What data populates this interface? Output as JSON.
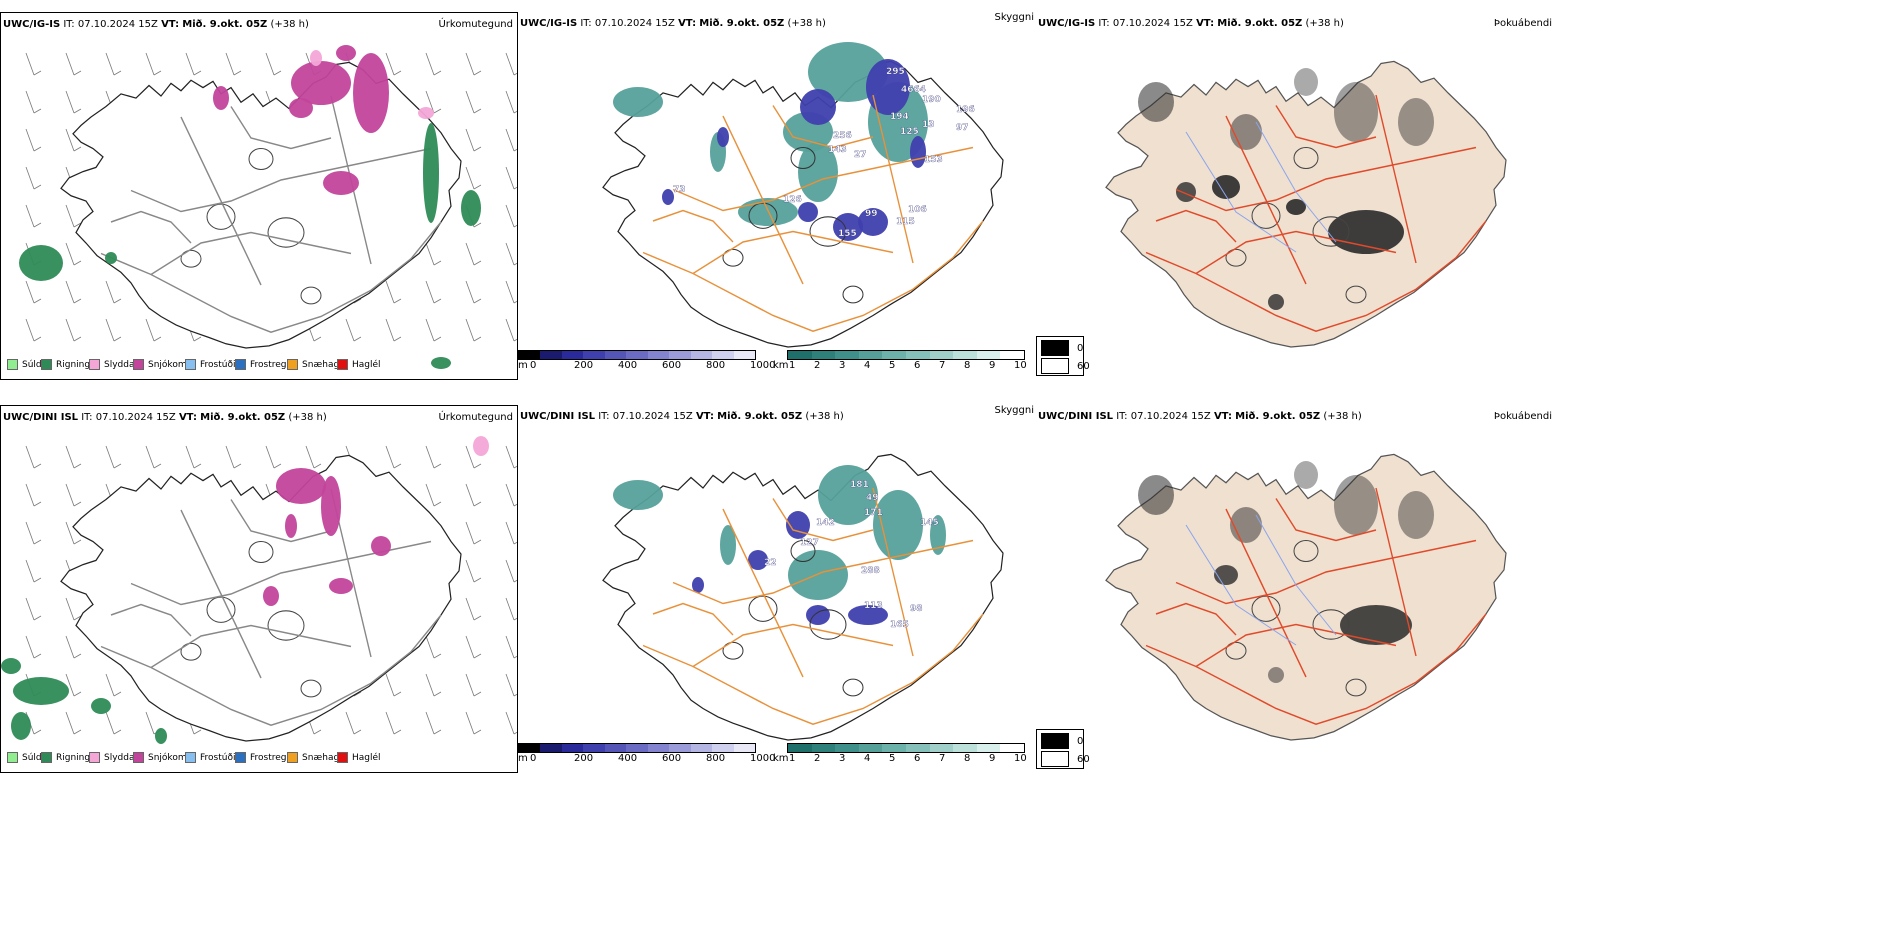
{
  "rows": [
    {
      "model": "UWC/IG-IS",
      "it_label": "IT:",
      "it_value": "07.10.2024 15Z",
      "vt_label": "VT:",
      "vt_value": "Mið. 9.okt. 05Z",
      "lead": "(+38 h)"
    },
    {
      "model": "UWC/DINI ISL",
      "it_label": "IT:",
      "it_value": "07.10.2024 15Z",
      "vt_label": "VT:",
      "vt_value": "Mið. 9.okt. 05Z",
      "lead": "(+38 h)"
    }
  ],
  "panel_titles": {
    "precip": "Úrkomutegund",
    "cloud": "Skyggni",
    "fog": "Þokuábendi"
  },
  "precip_legend": [
    {
      "label": "Súld",
      "color": "#90ee90"
    },
    {
      "label": "Rigning",
      "color": "#2e8b57"
    },
    {
      "label": "Slydda",
      "color": "#f4a6d7"
    },
    {
      "label": "Snjókoma",
      "color": "#c2449b"
    },
    {
      "label": "Frostúði",
      "color": "#87bff0"
    },
    {
      "label": "Frostregn",
      "color": "#2a6fc0"
    },
    {
      "label": "Snæhagl",
      "color": "#f0a020"
    },
    {
      "label": "Haglél",
      "color": "#e01010"
    }
  ],
  "ceiling_bar": {
    "unit": "m",
    "ticks": [
      "0",
      "200",
      "400",
      "600",
      "800",
      "1000"
    ],
    "colors": [
      "#000000",
      "#1a1a6e",
      "#2a2a9a",
      "#3f3fae",
      "#5555b8",
      "#6b6bc4",
      "#8383cf",
      "#9b9bda",
      "#b5b5e4",
      "#cfcfee",
      "#e8e8f7"
    ]
  },
  "visibility_bar": {
    "unit": "km",
    "ticks": [
      "1",
      "2",
      "3",
      "4",
      "5",
      "6",
      "7",
      "8",
      "9",
      "10"
    ],
    "colors": [
      "#1f6f6a",
      "#2e807a",
      "#3f908a",
      "#55a19a",
      "#6cb1aa",
      "#85c1ba",
      "#a0d0c9",
      "#bce0da",
      "#d9efeb",
      "#ffffff"
    ]
  },
  "fog_legend": [
    {
      "label": "0",
      "color": "#000000"
    },
    {
      "label": "60",
      "color": "#ffffff"
    }
  ],
  "cloud_labels_top": [
    "295",
    "4664",
    "190",
    "194",
    "196",
    "125",
    "13",
    "97",
    "256",
    "153",
    "106",
    "115",
    "155",
    "99",
    "126",
    "73",
    "143",
    "27"
  ],
  "cloud_labels_bottom": [
    "181",
    "49",
    "171",
    "145",
    "288",
    "98",
    "165",
    "113",
    "142",
    "127",
    "22"
  ]
}
